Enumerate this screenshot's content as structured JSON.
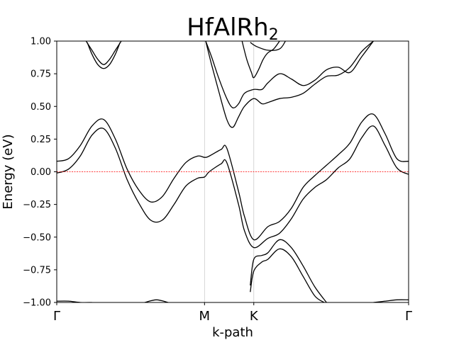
{
  "chart_data": {
    "type": "line",
    "title": "HfAlRh",
    "title_subscript": "2",
    "xlabel": "k-path",
    "ylabel": "Energy (eV)",
    "ylim": [
      -1.0,
      1.0
    ],
    "xlim": [
      0,
      3
    ],
    "y_ticks": [
      1.0,
      0.75,
      0.5,
      0.25,
      0.0,
      -0.25,
      -0.5,
      -0.75,
      -1.0
    ],
    "y_tick_labels": [
      "1.00",
      "0.75",
      "0.50",
      "0.25",
      "0.00",
      "−0.25",
      "−0.50",
      "−0.75",
      "−1.00"
    ],
    "x_ticks": [
      0,
      1.26,
      1.68,
      3.0
    ],
    "x_tick_labels": [
      "Γ",
      "M",
      "K",
      "Γ"
    ],
    "vlines": [
      1.26,
      1.68
    ],
    "fermi_level": 0.0,
    "colors": {
      "bands": "#000000",
      "fermi": "#ff0000",
      "vlines": "#cccccc"
    },
    "series": [
      {
        "x": [
          0,
          0.1,
          0.2,
          0.3,
          0.4,
          0.5,
          0.6,
          0.7,
          0.8,
          0.9,
          1.0,
          1.1,
          1.2,
          1.26,
          1.3,
          1.4,
          1.45,
          1.55,
          1.6,
          1.68,
          1.8,
          1.9,
          2.0,
          2.1,
          2.2,
          2.3,
          2.4,
          2.5,
          2.6,
          2.7,
          2.8,
          2.9,
          3.0
        ],
        "values": [
          0.08,
          0.1,
          0.2,
          0.35,
          0.4,
          0.25,
          0.02,
          -0.14,
          -0.23,
          -0.19,
          -0.05,
          0.07,
          0.12,
          0.11,
          0.12,
          0.17,
          0.18,
          -0.15,
          -0.34,
          -0.52,
          -0.42,
          -0.38,
          -0.28,
          -0.12,
          -0.03,
          0.05,
          0.13,
          0.22,
          0.38,
          0.44,
          0.29,
          0.1,
          0.08
        ]
      },
      {
        "x": [
          0,
          0.1,
          0.2,
          0.3,
          0.4,
          0.5,
          0.6,
          0.7,
          0.8,
          0.9,
          1.0,
          1.1,
          1.2,
          1.26,
          1.3,
          1.4,
          1.45,
          1.55,
          1.6,
          1.68,
          1.8,
          1.9,
          2.0,
          2.1,
          2.2,
          2.3,
          2.4,
          2.5,
          2.6,
          2.7,
          2.8,
          2.9,
          3.0
        ],
        "values": [
          -0.01,
          0.02,
          0.12,
          0.28,
          0.33,
          0.18,
          -0.06,
          -0.24,
          -0.37,
          -0.37,
          -0.25,
          -0.11,
          -0.05,
          -0.04,
          0.0,
          0.06,
          0.07,
          -0.25,
          -0.45,
          -0.58,
          -0.51,
          -0.47,
          -0.36,
          -0.21,
          -0.12,
          -0.06,
          0.03,
          0.1,
          0.26,
          0.35,
          0.2,
          0.03,
          -0.02
        ]
      },
      {
        "x": [
          0.25,
          0.3,
          0.35,
          0.4,
          0.45,
          0.5,
          0.55
        ],
        "values": [
          1.0,
          0.93,
          0.86,
          0.82,
          0.86,
          0.93,
          1.0
        ]
      },
      {
        "x": [
          0.26,
          0.3,
          0.35,
          0.4,
          0.45,
          0.5,
          0.54
        ],
        "values": [
          0.99,
          0.9,
          0.82,
          0.79,
          0.82,
          0.9,
          0.99
        ]
      },
      {
        "x": [
          1.27,
          1.32,
          1.38,
          1.45,
          1.5,
          1.55,
          1.6,
          1.68,
          1.75,
          1.8,
          1.9,
          2.0,
          2.1,
          2.2,
          2.3,
          2.4,
          2.5,
          2.6,
          2.7,
          2.8,
          2.9
        ],
        "values": [
          1.0,
          0.88,
          0.72,
          0.56,
          0.49,
          0.52,
          0.6,
          0.63,
          0.63,
          0.68,
          0.75,
          0.71,
          0.66,
          0.7,
          0.78,
          0.8,
          0.76,
          0.88,
          1.0,
          null,
          null
        ]
      },
      {
        "x": [
          1.27,
          1.32,
          1.38,
          1.45,
          1.5,
          1.55,
          1.6,
          1.68,
          1.75,
          1.8,
          1.9,
          2.0,
          2.1,
          2.2,
          2.3,
          2.4,
          2.5,
          2.6,
          2.7
        ],
        "values": [
          1.0,
          0.82,
          0.62,
          0.4,
          0.34,
          0.42,
          0.5,
          0.56,
          0.52,
          0.53,
          0.56,
          0.57,
          0.6,
          0.67,
          0.73,
          0.74,
          0.8,
          0.92,
          1.0
        ]
      },
      {
        "x": [
          1.58,
          1.62,
          1.66,
          1.68,
          1.72,
          1.76,
          1.8,
          1.85,
          1.9
        ],
        "values": [
          1.0,
          0.86,
          0.76,
          0.72,
          0.78,
          0.86,
          0.91,
          0.94,
          1.0
        ]
      },
      {
        "x": [
          1.65,
          1.7,
          1.8,
          1.9,
          1.95
        ],
        "values": [
          0.99,
          0.96,
          0.93,
          0.94,
          1.0
        ]
      },
      {
        "x": [
          1.65,
          1.68,
          1.75,
          1.8,
          1.9,
          2.0,
          2.1,
          2.2,
          2.3
        ],
        "values": [
          -0.87,
          -0.67,
          -0.64,
          -0.62,
          -0.52,
          -0.58,
          -0.72,
          -0.88,
          -1.0
        ]
      },
      {
        "x": [
          1.65,
          1.68,
          1.75,
          1.8,
          1.9,
          2.0,
          2.1,
          2.2,
          2.28
        ],
        "values": [
          -0.92,
          -0.76,
          -0.69,
          -0.67,
          -0.59,
          -0.65,
          -0.8,
          -0.95,
          -1.0
        ]
      },
      {
        "x": [
          0,
          0.1,
          0.2,
          0.3
        ],
        "values": [
          -0.99,
          -0.99,
          -1.0,
          -1.0
        ]
      },
      {
        "x": [
          0.75,
          0.85,
          0.95
        ],
        "values": [
          -1.0,
          -0.98,
          -1.0
        ]
      },
      {
        "x": [
          2.7,
          2.8,
          2.9,
          3.0
        ],
        "values": [
          -1.0,
          -0.99,
          -0.98,
          -0.98
        ]
      }
    ]
  }
}
